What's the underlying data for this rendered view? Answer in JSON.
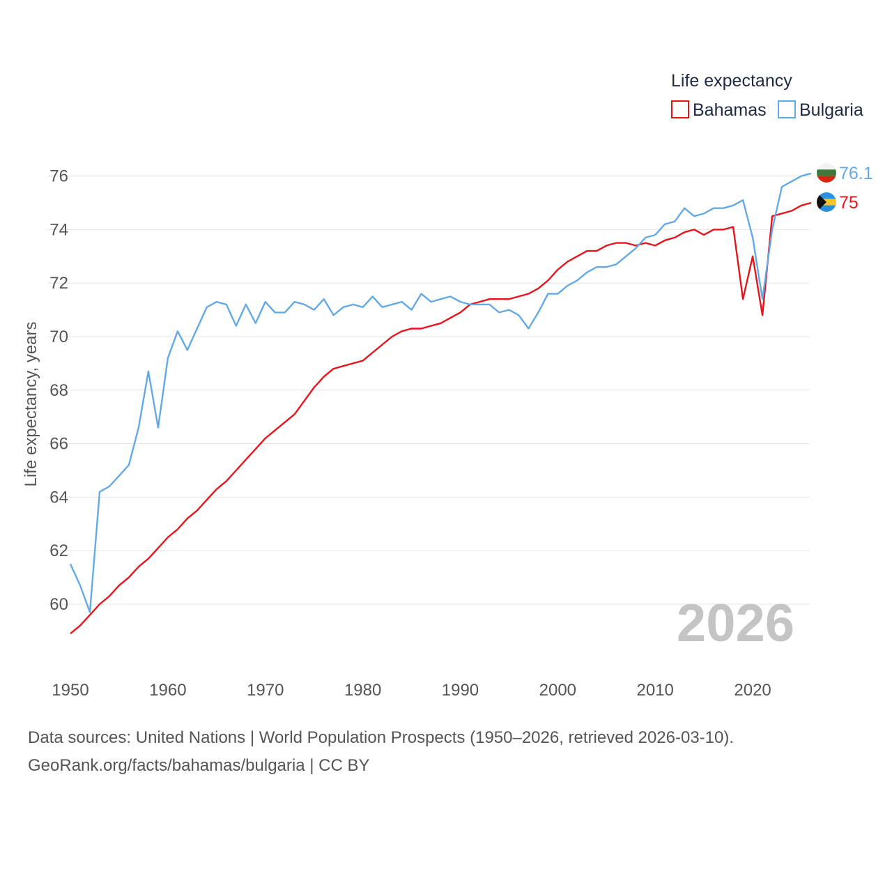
{
  "chart_data": {
    "type": "line",
    "title": "Life expectancy",
    "ylabel": "Life expectancy, years",
    "xlabel": "",
    "xlim": [
      1950,
      2026
    ],
    "ylim": [
      58,
      77
    ],
    "yticks": [
      60,
      62,
      64,
      66,
      68,
      70,
      72,
      74,
      76
    ],
    "xticks": [
      1950,
      1960,
      1970,
      1980,
      1990,
      2000,
      2010,
      2020
    ],
    "year_watermark": "2026",
    "grid": true,
    "legend_position": "top-right",
    "x": [
      1950,
      1951,
      1952,
      1953,
      1954,
      1955,
      1956,
      1957,
      1958,
      1959,
      1960,
      1961,
      1962,
      1963,
      1964,
      1965,
      1966,
      1967,
      1968,
      1969,
      1970,
      1971,
      1972,
      1973,
      1974,
      1975,
      1976,
      1977,
      1978,
      1979,
      1980,
      1981,
      1982,
      1983,
      1984,
      1985,
      1986,
      1987,
      1988,
      1989,
      1990,
      1991,
      1992,
      1993,
      1994,
      1995,
      1996,
      1997,
      1998,
      1999,
      2000,
      2001,
      2002,
      2003,
      2004,
      2005,
      2006,
      2007,
      2008,
      2009,
      2010,
      2011,
      2012,
      2013,
      2014,
      2015,
      2016,
      2017,
      2018,
      2019,
      2020,
      2021,
      2022,
      2023,
      2024,
      2025,
      2026
    ],
    "series": [
      {
        "name": "Bahamas",
        "color": "#e8141b",
        "end_label": "75",
        "flag": "bahamas-flag",
        "values": [
          58.9,
          59.2,
          59.6,
          60.0,
          60.3,
          60.7,
          61.0,
          61.4,
          61.7,
          62.1,
          62.5,
          62.8,
          63.2,
          63.5,
          63.9,
          64.3,
          64.6,
          65.0,
          65.4,
          65.8,
          66.2,
          66.5,
          66.8,
          67.1,
          67.6,
          68.1,
          68.5,
          68.8,
          68.9,
          69.0,
          69.1,
          69.4,
          69.7,
          70.0,
          70.2,
          70.3,
          70.3,
          70.4,
          70.5,
          70.7,
          70.9,
          71.2,
          71.3,
          71.4,
          71.4,
          71.4,
          71.5,
          71.6,
          71.8,
          72.1,
          72.5,
          72.8,
          73.0,
          73.2,
          73.2,
          73.4,
          73.5,
          73.5,
          73.4,
          73.5,
          73.4,
          73.6,
          73.7,
          73.9,
          74.0,
          73.8,
          74.0,
          74.0,
          74.1,
          71.4,
          73.0,
          70.8,
          74.5,
          74.6,
          74.7,
          74.9,
          75.0
        ]
      },
      {
        "name": "Bulgaria",
        "color": "#63a9e6",
        "end_label": "76.1",
        "flag": "bulgaria-flag",
        "values": [
          61.5,
          60.7,
          59.7,
          64.2,
          64.4,
          64.8,
          65.2,
          66.6,
          68.7,
          66.6,
          69.2,
          70.2,
          69.5,
          70.3,
          71.1,
          71.3,
          71.2,
          70.4,
          71.2,
          70.5,
          71.3,
          70.9,
          70.9,
          71.3,
          71.2,
          71.0,
          71.4,
          70.8,
          71.1,
          71.2,
          71.1,
          71.5,
          71.1,
          71.2,
          71.3,
          71.0,
          71.6,
          71.3,
          71.4,
          71.5,
          71.3,
          71.2,
          71.2,
          71.2,
          70.9,
          71.0,
          70.8,
          70.3,
          70.9,
          71.6,
          71.6,
          71.9,
          72.1,
          72.4,
          72.6,
          72.6,
          72.7,
          73.0,
          73.3,
          73.7,
          73.8,
          74.2,
          74.3,
          74.8,
          74.5,
          74.6,
          74.8,
          74.8,
          74.9,
          75.1,
          73.7,
          71.4,
          74.0,
          75.6,
          75.8,
          76.0,
          76.1
        ]
      }
    ]
  },
  "footer": {
    "line1": "Data sources: United Nations | World Population Prospects (1950–2026, retrieved 2026-03-10).",
    "line2": "GeoRank.org/facts/bahamas/bulgaria | CC BY"
  }
}
